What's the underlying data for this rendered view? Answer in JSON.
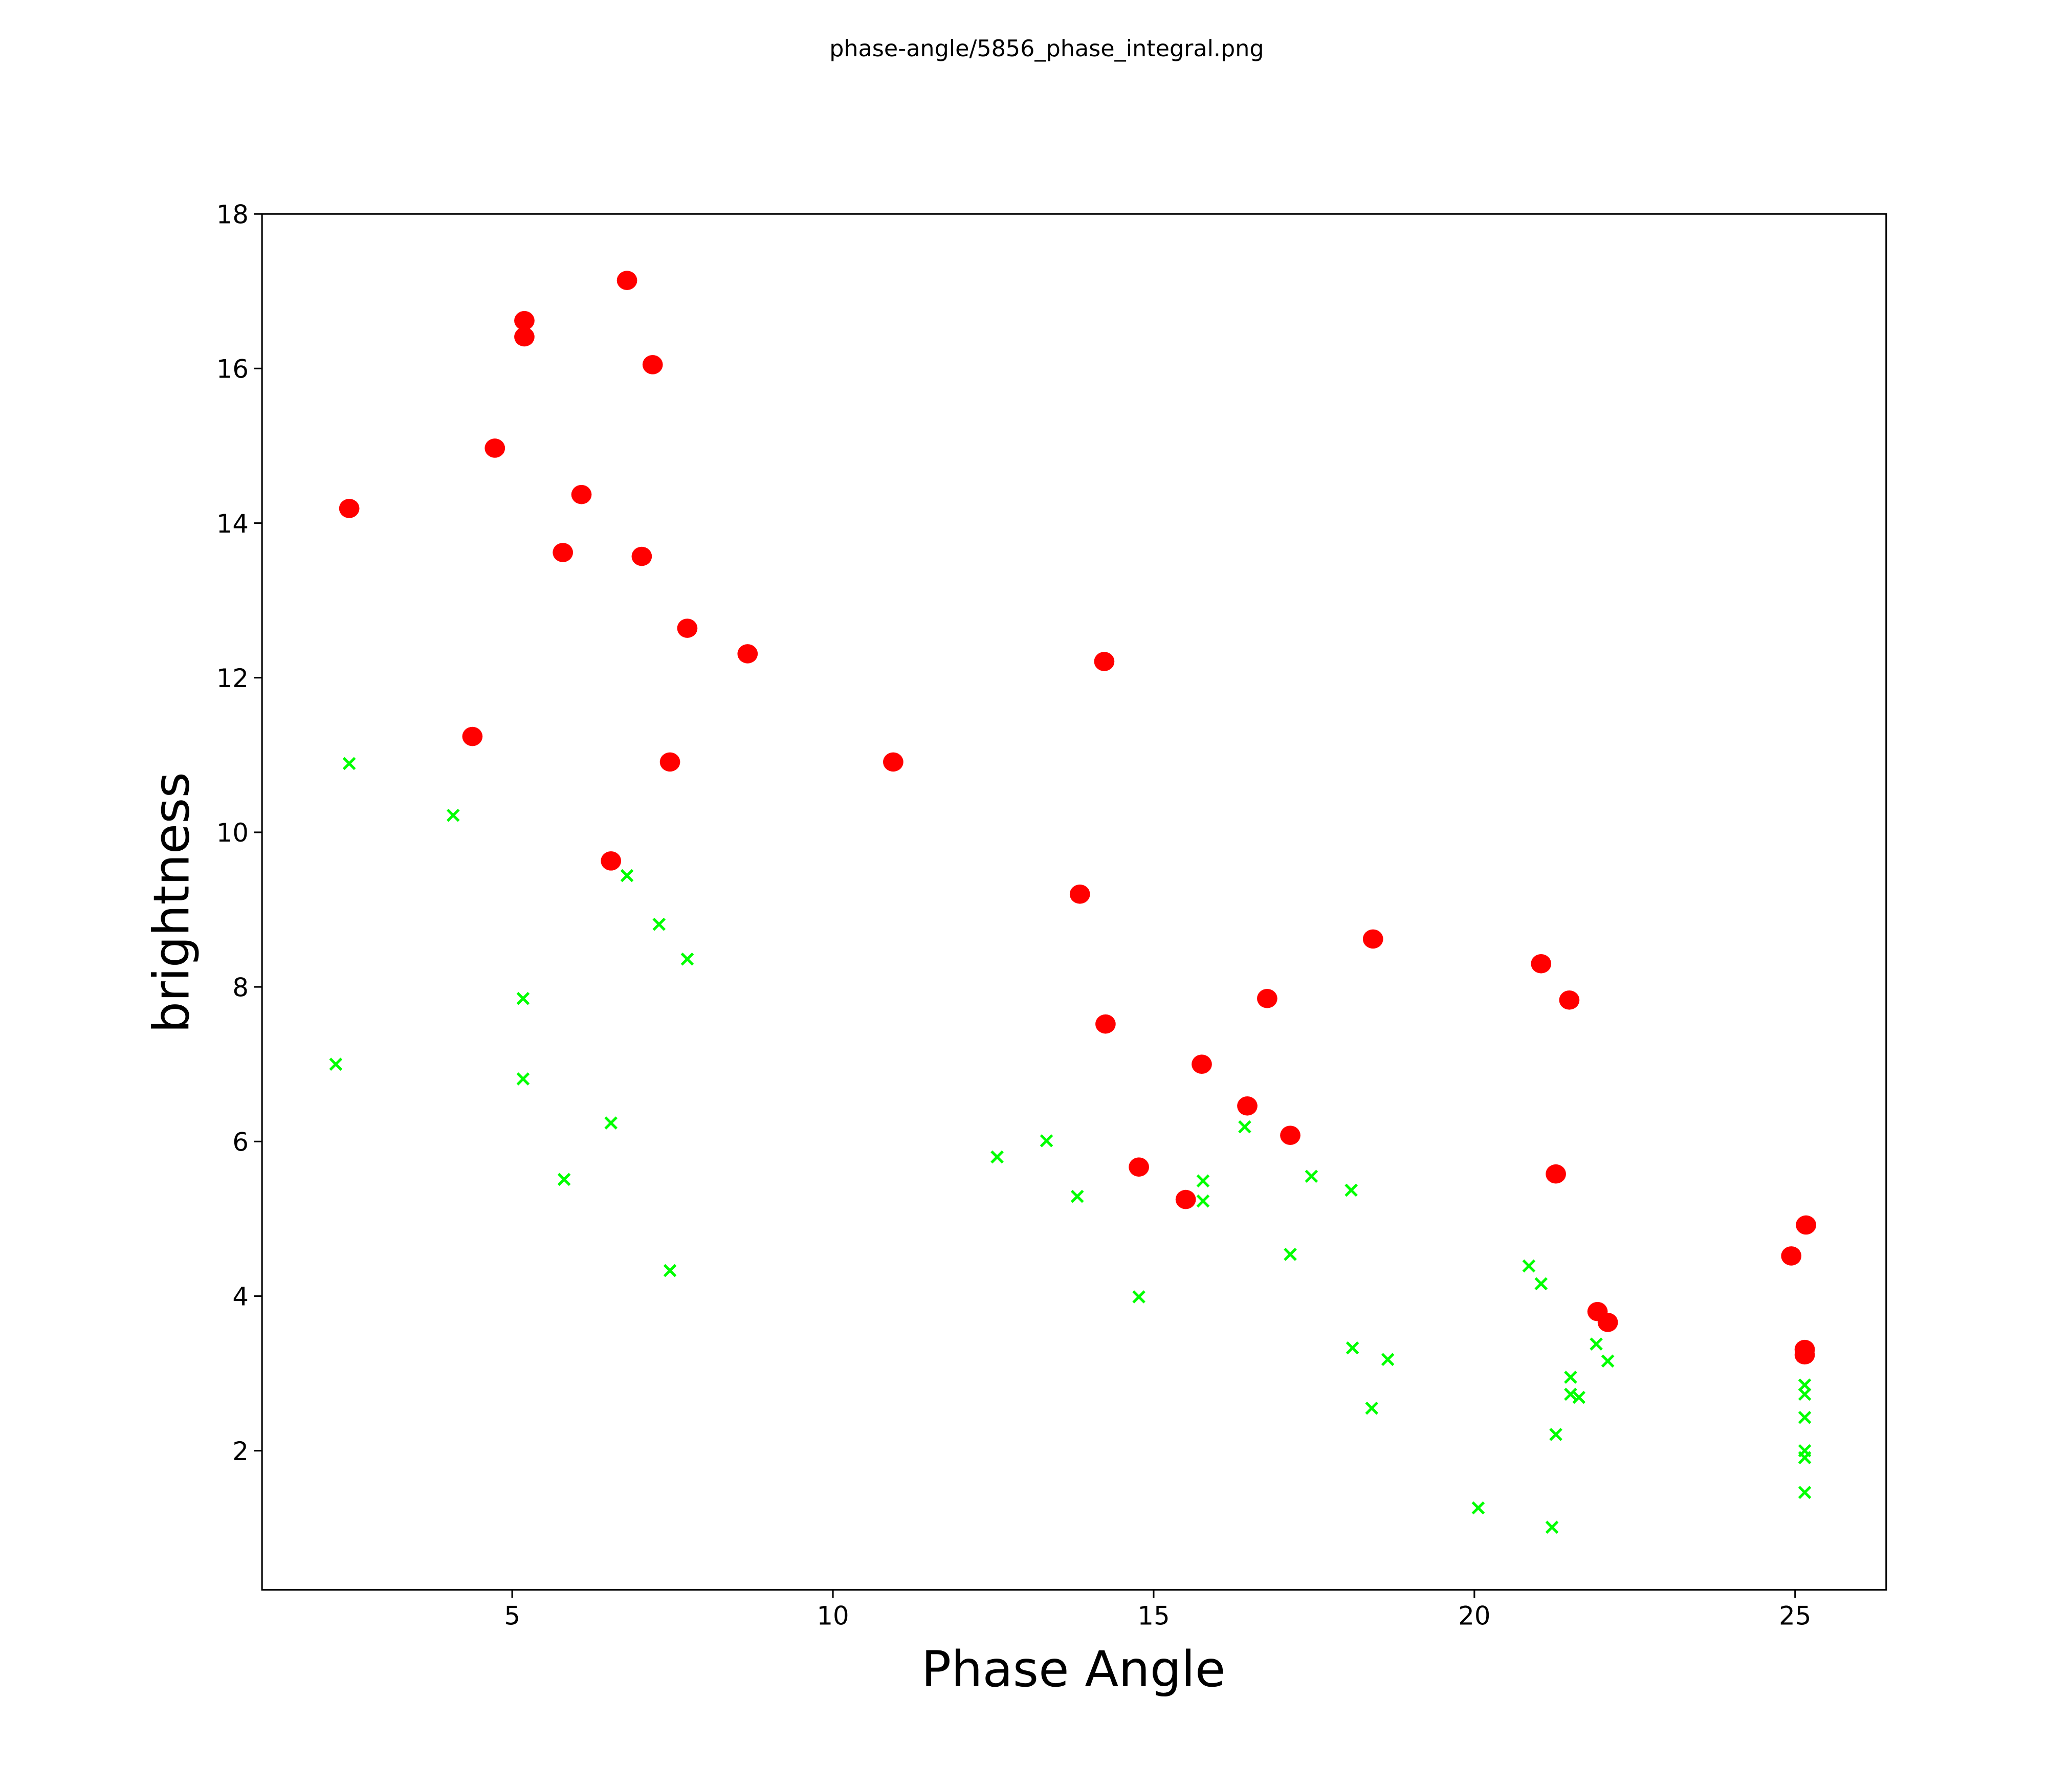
{
  "chart_data": {
    "type": "scatter",
    "title": "phase-angle/5856_phase_integral.png",
    "xlabel": "Phase Angle",
    "ylabel": "brightness",
    "xlim": [
      1.1,
      26.42
    ],
    "ylim": [
      0.2,
      18
    ],
    "xticks": [
      5,
      10,
      15,
      20,
      25
    ],
    "yticks": [
      2,
      4,
      6,
      8,
      10,
      12,
      14,
      16,
      18
    ],
    "grid": false,
    "series": [
      {
        "name": "red-circles",
        "marker": "circle",
        "color": "#ff0000",
        "points": [
          [
            2.46,
            14.19
          ],
          [
            5.19,
            16.62
          ],
          [
            5.19,
            16.41
          ],
          [
            6.79,
            17.14
          ],
          [
            7.19,
            16.05
          ],
          [
            4.73,
            14.97
          ],
          [
            6.08,
            14.37
          ],
          [
            5.79,
            13.62
          ],
          [
            7.02,
            13.57
          ],
          [
            7.73,
            12.64
          ],
          [
            8.67,
            12.31
          ],
          [
            14.23,
            12.21
          ],
          [
            4.38,
            11.24
          ],
          [
            7.46,
            10.91
          ],
          [
            10.94,
            10.91
          ],
          [
            6.54,
            9.63
          ],
          [
            13.85,
            9.2
          ],
          [
            18.42,
            8.62
          ],
          [
            21.04,
            8.3
          ],
          [
            16.77,
            7.85
          ],
          [
            21.48,
            7.83
          ],
          [
            14.25,
            7.52
          ],
          [
            15.75,
            7.0
          ],
          [
            16.46,
            6.46
          ],
          [
            17.13,
            6.08
          ],
          [
            14.77,
            5.67
          ],
          [
            21.27,
            5.58
          ],
          [
            15.5,
            5.25
          ],
          [
            25.17,
            4.92
          ],
          [
            24.94,
            4.52
          ],
          [
            21.92,
            3.8
          ],
          [
            22.08,
            3.66
          ],
          [
            25.15,
            3.31
          ],
          [
            25.15,
            3.24
          ]
        ]
      },
      {
        "name": "green-crosses",
        "marker": "x",
        "color": "#00ff00",
        "points": [
          [
            2.46,
            10.89
          ],
          [
            4.08,
            10.22
          ],
          [
            6.79,
            9.44
          ],
          [
            7.29,
            8.81
          ],
          [
            7.73,
            8.36
          ],
          [
            5.17,
            7.85
          ],
          [
            2.25,
            7.0
          ],
          [
            5.17,
            6.81
          ],
          [
            6.54,
            6.24
          ],
          [
            5.81,
            5.51
          ],
          [
            7.46,
            4.33
          ],
          [
            12.56,
            5.8
          ],
          [
            13.33,
            6.01
          ],
          [
            13.81,
            5.29
          ],
          [
            14.77,
            3.99
          ],
          [
            15.77,
            5.49
          ],
          [
            15.77,
            5.23
          ],
          [
            16.42,
            6.19
          ],
          [
            17.13,
            4.54
          ],
          [
            17.46,
            5.55
          ],
          [
            18.08,
            5.37
          ],
          [
            18.1,
            3.33
          ],
          [
            18.65,
            3.18
          ],
          [
            18.4,
            2.55
          ],
          [
            20.06,
            1.26
          ],
          [
            20.85,
            4.39
          ],
          [
            21.04,
            4.16
          ],
          [
            21.9,
            3.38
          ],
          [
            22.08,
            3.16
          ],
          [
            21.5,
            2.95
          ],
          [
            21.5,
            2.73
          ],
          [
            21.63,
            2.69
          ],
          [
            21.27,
            2.21
          ],
          [
            21.21,
            1.01
          ],
          [
            25.15,
            2.85
          ],
          [
            25.15,
            2.73
          ],
          [
            25.15,
            2.43
          ],
          [
            25.15,
            2.0
          ],
          [
            25.15,
            1.91
          ],
          [
            25.15,
            1.46
          ]
        ]
      }
    ]
  }
}
